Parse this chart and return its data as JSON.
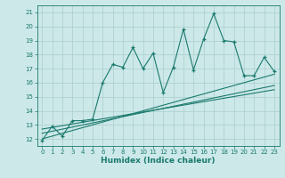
{
  "xlabel": "Humidex (Indice chaleur)",
  "ylabel": "",
  "bg_color": "#cce8e8",
  "line_color": "#1a7a6e",
  "xlim": [
    -0.5,
    23.5
  ],
  "ylim": [
    11.5,
    21.5
  ],
  "xticks": [
    0,
    1,
    2,
    3,
    4,
    5,
    6,
    7,
    8,
    9,
    10,
    11,
    12,
    13,
    14,
    15,
    16,
    17,
    18,
    19,
    20,
    21,
    22,
    23
  ],
  "yticks": [
    12,
    13,
    14,
    15,
    16,
    17,
    18,
    19,
    20,
    21
  ],
  "main_x": [
    0,
    1,
    2,
    3,
    4,
    5,
    6,
    7,
    8,
    9,
    10,
    11,
    12,
    13,
    14,
    15,
    16,
    17,
    18,
    19,
    20,
    21,
    22,
    23
  ],
  "main_y": [
    11.9,
    12.9,
    12.2,
    13.3,
    13.3,
    13.4,
    16.0,
    17.3,
    17.1,
    18.5,
    17.0,
    18.1,
    15.3,
    17.1,
    19.8,
    16.9,
    19.1,
    20.9,
    19.0,
    18.9,
    16.5,
    16.5,
    17.8,
    16.8
  ],
  "trend1_x": [
    0,
    23
  ],
  "trend1_y": [
    12.0,
    16.6
  ],
  "trend2_x": [
    0,
    23
  ],
  "trend2_y": [
    12.4,
    15.8
  ],
  "trend3_x": [
    0,
    23
  ],
  "trend3_y": [
    12.7,
    15.5
  ]
}
